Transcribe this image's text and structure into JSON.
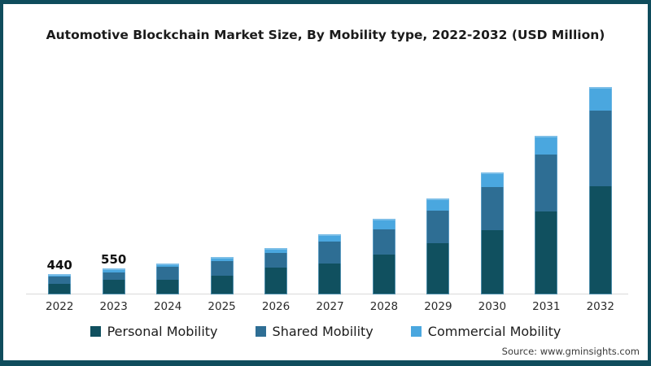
{
  "title": "Automotive Blockchain Market Size, By Mobility type, 2022-2032 (USD Million)",
  "source": "Source: www.gminsights.com",
  "colors": {
    "personal": "#10505f",
    "shared": "#2e6e94",
    "commercial": "#4aa7df",
    "frame_border": "#0f4c5c",
    "axis_line": "#d9d9d9"
  },
  "chart_data": {
    "type": "bar",
    "stacked": true,
    "title": "Automotive Blockchain Market Size, By Mobility type, 2022-2032 (USD Million)",
    "unit": "USD Million",
    "xlabel": "",
    "ylabel": "",
    "gridlines": false,
    "legend_position": "bottom",
    "categories": [
      "2022",
      "2023",
      "2024",
      "2025",
      "2026",
      "2027",
      "2028",
      "2029",
      "2030",
      "2031",
      "2032"
    ],
    "series": [
      {
        "name": "Personal Mobility",
        "color": "#10505f",
        "values": [
          220,
          305,
          320,
          400,
          570,
          665,
          840,
          1090,
          1370,
          1760,
          2300
        ]
      },
      {
        "name": "Shared Mobility",
        "color": "#2e6e94",
        "values": [
          160,
          170,
          260,
          300,
          320,
          450,
          550,
          690,
          915,
          1210,
          1600
        ]
      },
      {
        "name": "Commercial Mobility",
        "color": "#4aa7df",
        "values": [
          60,
          75,
          85,
          90,
          100,
          160,
          210,
          260,
          315,
          400,
          500
        ]
      }
    ],
    "totals": [
      440,
      550,
      665,
      790,
      990,
      1275,
      1600,
      2040,
      2600,
      3370,
      4400
    ],
    "bar_labels": [
      "440",
      "550",
      "",
      "",
      "",
      "",
      "",
      "",
      "",
      "",
      ""
    ]
  }
}
